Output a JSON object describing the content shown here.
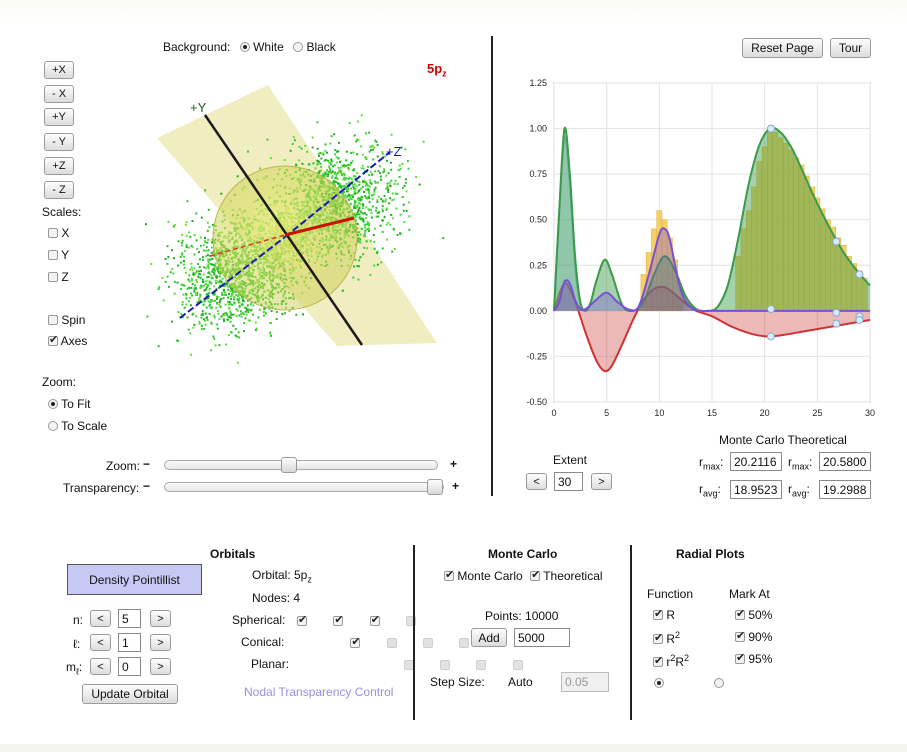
{
  "viewer": {
    "background_label": "Background:",
    "bg_white": "White",
    "bg_black": "Black",
    "orbital_label": "5p",
    "orbital_label_sub": "z",
    "view_buttons": [
      "+X",
      "- X",
      "+Y",
      "- Y",
      "+Z",
      "- Z"
    ],
    "scales_label": "Scales:",
    "scale_x": "X",
    "scale_y": "Y",
    "scale_z": "Z",
    "spin_label": "Spin",
    "axes_label": "Axes",
    "zoom_label": "Zoom:",
    "to_fit": "To Fit",
    "to_scale": "To Scale",
    "axis_y_label": "+Y",
    "axis_z_label": "+Z",
    "zoom_slider_label": "Zoom:",
    "transparency_label": "Transparency:",
    "minus": "−",
    "plus": "+",
    "zoom_level": 0.45,
    "transparency_level": 1.0
  },
  "top_buttons": {
    "reset": "Reset Page",
    "tour": "Tour"
  },
  "chart_data": {
    "type": "area",
    "xlim": [
      0,
      30
    ],
    "ylim": [
      -0.5,
      1.25
    ],
    "x_ticks": [
      0,
      5,
      10,
      15,
      20,
      25,
      30
    ],
    "y_ticks": [
      1.25,
      1.0,
      0.75,
      0.5,
      0.25,
      0.0,
      -0.25,
      -0.5
    ],
    "x_tick_labels": [
      "0",
      "5",
      "10",
      "15",
      "20",
      "25",
      "30"
    ],
    "y_tick_labels": [
      "1.25",
      "1.00",
      "0.75",
      "0.50",
      "0.25",
      "0.00",
      "-0.25",
      "-0.50"
    ],
    "grid": true,
    "colors": {
      "green": "#3a9a4a",
      "red": "#cc3333",
      "purple": "#7a4fd6",
      "histogram": "#f2c94c",
      "blue": "#8fc5e8"
    },
    "histogram_x": [
      8.5,
      9,
      9.5,
      10,
      10.5,
      11,
      11.5,
      12,
      17.5,
      18,
      18.5,
      19,
      19.5,
      20,
      20.5,
      21,
      21.5,
      22,
      22.5,
      23,
      23.5,
      24,
      24.5,
      25,
      25.5,
      26,
      26.5,
      27,
      27.5,
      28,
      28.5,
      29,
      29.5
    ],
    "histogram_values": [
      0.2,
      0.32,
      0.45,
      0.55,
      0.5,
      0.4,
      0.28,
      0.12,
      0.3,
      0.45,
      0.55,
      0.68,
      0.82,
      0.9,
      0.99,
      0.98,
      0.95,
      0.92,
      0.88,
      0.84,
      0.8,
      0.74,
      0.68,
      0.62,
      0.56,
      0.5,
      0.46,
      0.4,
      0.36,
      0.3,
      0.26,
      0.22,
      0.18
    ],
    "series": [
      {
        "id": "R",
        "color": "#cc3333",
        "x": [
          0,
          1,
          2,
          3,
          4,
          4.8,
          5.5,
          6.5,
          7.5,
          8.5,
          9.5,
          10.5,
          11.5,
          12.5,
          13.5,
          15,
          17,
          19,
          20.5,
          22,
          24,
          26,
          27,
          28,
          29,
          30
        ],
        "y": [
          0,
          0.15,
          0.05,
          -0.12,
          -0.27,
          -0.33,
          -0.3,
          -0.18,
          -0.05,
          0.06,
          0.12,
          0.13,
          0.09,
          0.04,
          0,
          -0.03,
          -0.09,
          -0.13,
          -0.14,
          -0.13,
          -0.11,
          -0.09,
          -0.08,
          -0.07,
          -0.06,
          -0.05
        ]
      },
      {
        "id": "R2",
        "color": "#7a4fd6",
        "x": [
          0,
          0.5,
          1,
          1.5,
          2,
          2.5,
          3,
          4,
          5,
          6,
          7,
          8,
          9,
          10,
          10.5,
          11,
          12,
          13,
          14,
          15,
          17,
          20,
          25,
          30
        ],
        "y": [
          0,
          0.05,
          0.16,
          0.15,
          0.06,
          0.01,
          0.01,
          0.06,
          0.1,
          0.05,
          0.01,
          0.02,
          0.2,
          0.42,
          0.45,
          0.39,
          0.12,
          0.02,
          0,
          0,
          0,
          0,
          0,
          0
        ]
      },
      {
        "id": "r2R2",
        "color": "#3a9a4a",
        "x": [
          0,
          0.5,
          1,
          1.5,
          2,
          2.5,
          3,
          3.5,
          4,
          4.8,
          5.5,
          6.5,
          7.5,
          8.5,
          9.5,
          10.5,
          11.5,
          12.5,
          13.5,
          14.5,
          15.5,
          16.5,
          17.5,
          18.5,
          19.5,
          20.5,
          21.5,
          22.5,
          23.5,
          24.5,
          25.5,
          26.5,
          27.5,
          28.5,
          29.5,
          30
        ],
        "y": [
          0,
          0.55,
          1.0,
          0.75,
          0.3,
          0.05,
          0,
          0.05,
          0.16,
          0.28,
          0.2,
          0.03,
          0,
          0.05,
          0.2,
          0.3,
          0.22,
          0.08,
          0.01,
          0,
          0.02,
          0.14,
          0.4,
          0.7,
          0.91,
          1.0,
          0.98,
          0.9,
          0.78,
          0.65,
          0.53,
          0.42,
          0.32,
          0.24,
          0.17,
          0.14
        ]
      },
      {
        "id": "theory",
        "color": "#8fc5e8",
        "x": [
          0,
          0.5,
          1,
          1.5,
          2,
          2.5,
          3
        ],
        "y": [
          0,
          0.55,
          0.95,
          0.7,
          0.25,
          0.04,
          0
        ]
      }
    ],
    "markers": [
      {
        "x": 20.6,
        "y": 1.0
      },
      {
        "x": 26.8,
        "y": 0.38
      },
      {
        "x": 29,
        "y": 0.2
      },
      {
        "x": 20.6,
        "y": 0.01
      },
      {
        "x": 26.8,
        "y": -0.01
      },
      {
        "x": 29,
        "y": -0.03
      },
      {
        "x": 20.6,
        "y": -0.14
      },
      {
        "x": 26.8,
        "y": -0.07
      },
      {
        "x": 29,
        "y": -0.05
      }
    ]
  },
  "extent": {
    "label": "Extent",
    "value": "30",
    "dec": "<",
    "inc": ">"
  },
  "stats": {
    "header": "Monte Carlo Theoretical",
    "r": "r",
    "max_sub": "max",
    "avg_sub": "avg",
    "colon": ":",
    "mc_rmax": "20.2116",
    "th_rmax": "20.5800",
    "mc_ravg": "18.9523",
    "th_ravg": "19.2988"
  },
  "orbitals": {
    "header": "Orbitals",
    "mode_button": "Density Pointillist",
    "n_label": "n:",
    "l_label": "ℓ:",
    "m_label": "m",
    "m_sub": "ℓ",
    "m_colon": ":",
    "n_value": "5",
    "l_value": "1",
    "m_value": "0",
    "dec": "<",
    "inc": ">",
    "update_button": "Update Orbital",
    "orbital_info": "Orbital: 5p",
    "orbital_info_sub": "z",
    "nodes_info": "Nodes: 4",
    "spherical_label": "Spherical:",
    "conical_label": "Conical:",
    "planar_label": "Planar:",
    "nodal_link": "Nodal Transparency Control"
  },
  "monte_carlo": {
    "header": "Monte Carlo",
    "mc_label": "Monte Carlo",
    "theo_label": "Theoretical",
    "points_info": "Points: 10000",
    "add_button": "Add",
    "add_value": "5000",
    "step_label": "Step Size:",
    "auto_label": "Auto",
    "step_value": "0.05"
  },
  "radial": {
    "header": "Radial Plots",
    "function_label": "Function",
    "mark_label": "Mark At",
    "f1": "R",
    "f2": "R",
    "f2_sup": "2",
    "f3": "r",
    "f3_sup1": "2",
    "f3_mid": "R",
    "f3_sup2": "2",
    "m1": "50%",
    "m2": "90%",
    "m3": "95%"
  }
}
